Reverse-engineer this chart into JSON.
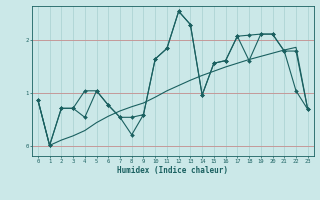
{
  "xlabel": "Humidex (Indice chaleur)",
  "bg_color": "#cbe8e8",
  "grid_color": "#a8d0d0",
  "red_line_color": "#c89090",
  "line_color": "#1a6060",
  "xlim": [
    -0.5,
    23.5
  ],
  "ylim": [
    -0.18,
    2.65
  ],
  "xticks": [
    0,
    1,
    2,
    3,
    4,
    5,
    6,
    7,
    8,
    9,
    10,
    11,
    12,
    13,
    14,
    15,
    16,
    17,
    18,
    19,
    20,
    21,
    22,
    23
  ],
  "yticks": [
    0,
    1,
    2
  ],
  "curve1_x": [
    0,
    1,
    2,
    3,
    4,
    5,
    6,
    7,
    8,
    9,
    10,
    11,
    12,
    13,
    14,
    15,
    16,
    17,
    18,
    19,
    20,
    21,
    22,
    23
  ],
  "curve1_y": [
    0.88,
    0.02,
    0.72,
    0.72,
    0.55,
    1.05,
    0.78,
    0.55,
    0.55,
    0.6,
    1.65,
    1.85,
    2.55,
    2.3,
    0.97,
    1.57,
    1.62,
    2.08,
    1.62,
    2.12,
    2.12,
    1.8,
    1.05,
    0.7
  ],
  "curve2_x": [
    0,
    1,
    2,
    3,
    4,
    5,
    6,
    7,
    8,
    9,
    10,
    11,
    12,
    13,
    14,
    15,
    16,
    17,
    18,
    19,
    20,
    21,
    22,
    23
  ],
  "curve2_y": [
    0.88,
    0.02,
    0.72,
    0.72,
    1.05,
    1.05,
    0.78,
    0.55,
    0.22,
    0.6,
    1.65,
    1.85,
    2.55,
    2.3,
    0.97,
    1.57,
    1.62,
    2.08,
    2.1,
    2.12,
    2.12,
    1.8,
    1.8,
    0.7
  ],
  "curve3_x": [
    0,
    1,
    2,
    3,
    4,
    5,
    6,
    7,
    8,
    9,
    10,
    11,
    12,
    13,
    14,
    15,
    16,
    17,
    18,
    19,
    20,
    21,
    22,
    23
  ],
  "curve3_y": [
    0.88,
    0.02,
    0.12,
    0.2,
    0.3,
    0.45,
    0.57,
    0.67,
    0.75,
    0.82,
    0.93,
    1.05,
    1.15,
    1.25,
    1.34,
    1.42,
    1.5,
    1.57,
    1.64,
    1.7,
    1.76,
    1.82,
    1.87,
    0.7
  ]
}
